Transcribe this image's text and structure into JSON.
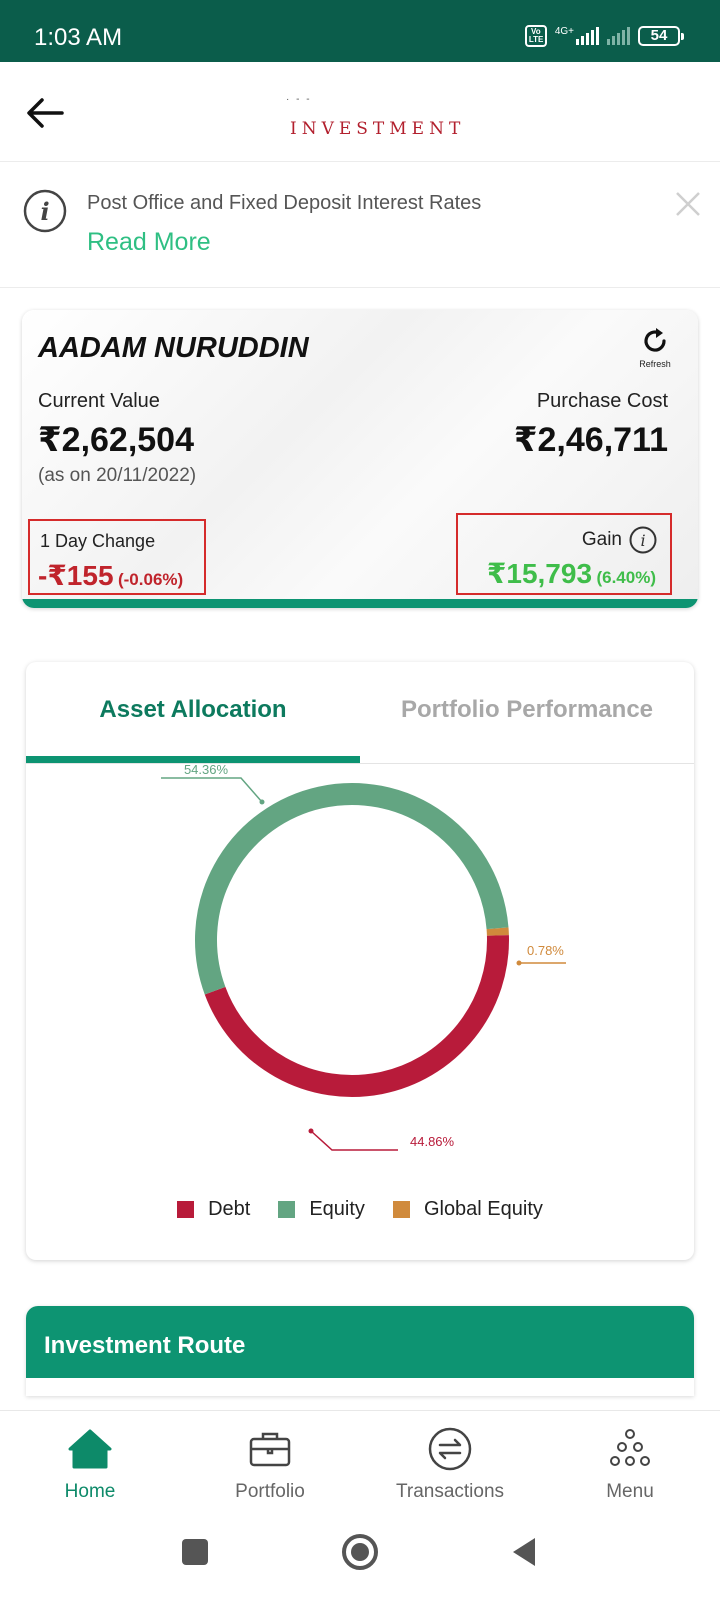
{
  "status_bar": {
    "time": "1:03 AM",
    "network": "4G+",
    "volte": "Vo LTE",
    "battery": "54"
  },
  "app_bar": {
    "logo_text": "INVESTMENT",
    "logo_dots": "· - -",
    "back_icon": "arrow-left-icon"
  },
  "notice": {
    "text": "Post Office and Fixed Deposit Interest Rates",
    "link": "Read More"
  },
  "summary": {
    "name": "AADAM NURUDDIN",
    "refresh_label": "Refresh",
    "current_value_label": "Current Value",
    "current_value": "₹2,62,504",
    "as_on": "(as on 20/11/2022)",
    "purchase_cost_label": "Purchase Cost",
    "purchase_cost": "₹2,46,711",
    "day_change_label": "1 Day Change",
    "day_change_value": "-₹155",
    "day_change_pct": "(-0.06%)",
    "gain_label": "Gain",
    "gain_value": "₹15,793",
    "gain_pct": "(6.40%)"
  },
  "allocation": {
    "tabs": [
      "Asset Allocation",
      "Portfolio Performance"
    ],
    "active_tab": "Asset Allocation",
    "legend": [
      "Debt",
      "Equity",
      "Global Equity"
    ]
  },
  "chart_data": {
    "type": "pie",
    "donut": true,
    "categories": [
      "Debt",
      "Equity",
      "Global Equity"
    ],
    "values": [
      44.86,
      54.36,
      0.78
    ],
    "labels": [
      "44.86%",
      "54.36%",
      "0.78%"
    ],
    "colors": [
      "#b81b3a",
      "#63a582",
      "#d08a3c"
    ],
    "legend_position": "bottom"
  },
  "route": {
    "title": "Investment Route"
  },
  "bottom_nav": {
    "items": [
      {
        "label": "Home",
        "icon": "home-icon"
      },
      {
        "label": "Portfolio",
        "icon": "briefcase-icon"
      },
      {
        "label": "Transactions",
        "icon": "transfer-icon"
      },
      {
        "label": "Menu",
        "icon": "menu-dots-icon"
      }
    ],
    "active": "Home"
  },
  "colors": {
    "brand_green": "#0d9472",
    "status_bar": "#0b5d4b",
    "loss_red": "#c0242c",
    "gain_green": "#3fbd4a"
  }
}
